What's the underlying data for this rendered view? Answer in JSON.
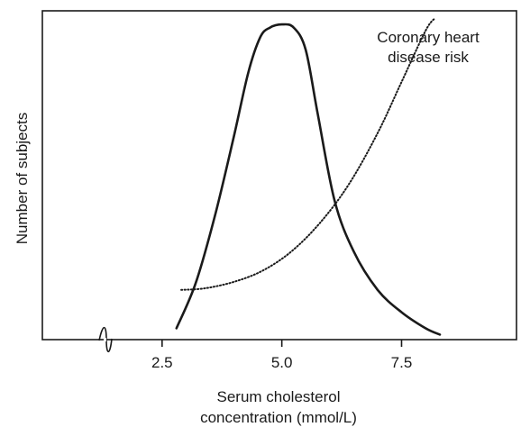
{
  "chart_data": {
    "type": "line",
    "title": "",
    "xlabel": [
      "Serum cholesterol",
      "concentration (mmol/L)"
    ],
    "ylabel": "Number of subjects",
    "xlim": [
      0,
      9.9
    ],
    "ylim": [
      0,
      100
    ],
    "xaxis_break": true,
    "x_ticks": [
      2.5,
      5.0,
      7.5
    ],
    "x_tick_labels": [
      "2.5",
      "5.0",
      "7.5"
    ],
    "y_ticks": [],
    "grid": false,
    "legend": "none",
    "series": [
      {
        "style": "solid",
        "x": [
          2.8,
          3.2,
          3.6,
          4.0,
          4.3,
          4.55,
          4.75,
          5.0,
          5.25,
          5.5,
          5.75,
          6.1,
          6.5,
          7.0,
          7.5,
          8.0,
          8.3
        ],
        "y": [
          3,
          17,
          38,
          63,
          83,
          94,
          97,
          98,
          97,
          90,
          70,
          43,
          27,
          15,
          8,
          3,
          1
        ]
      },
      {
        "style": "dotted",
        "x": [
          2.9,
          3.4,
          4.0,
          4.6,
          5.2,
          5.8,
          6.4,
          7.0,
          7.5,
          8.0,
          8.2
        ],
        "y": [
          15,
          15.5,
          17.5,
          21,
          27,
          36,
          48,
          64,
          80,
          96,
          100
        ]
      }
    ],
    "annotations": [
      {
        "lines": [
          "Coronary heart",
          "disease risk"
        ],
        "series": 1
      }
    ]
  }
}
